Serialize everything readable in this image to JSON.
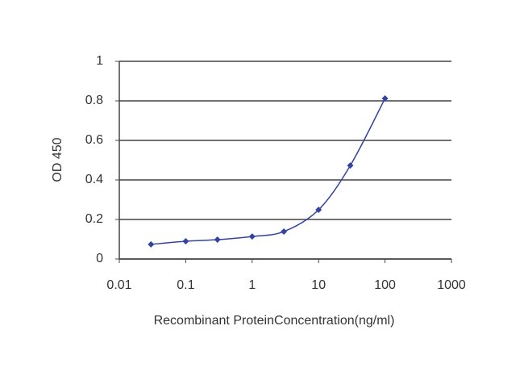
{
  "chart_data": {
    "type": "line",
    "xlabel": "Recombinant ProteinConcentration(ng/ml)",
    "ylabel": "OD 450",
    "x": [
      0.03,
      0.1,
      0.3,
      1,
      3,
      10,
      30,
      100
    ],
    "values": [
      0.074,
      0.09,
      0.098,
      0.114,
      0.139,
      0.249,
      0.473,
      0.812
    ],
    "color": "#3344a0",
    "xscale": "log",
    "xlim": [
      0.01,
      1000
    ],
    "xticks": [
      0.01,
      0.1,
      1,
      10,
      100,
      1000
    ],
    "ylim": [
      0,
      1
    ],
    "yticks": [
      0,
      0.2,
      0.4,
      0.6,
      0.8,
      1
    ],
    "grid": true
  }
}
